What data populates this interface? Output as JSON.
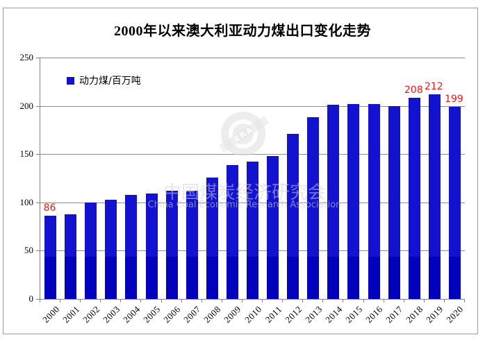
{
  "window": {
    "background": "#ffffff",
    "frame_border_color": "#9d9d9d"
  },
  "chart_data": {
    "type": "bar",
    "title": "2000年以来澳大利亚动力煤出口变化走势",
    "legend": {
      "label": "动力煤/百万吨",
      "position": "top-left-inside"
    },
    "categories": [
      "2000",
      "2001",
      "2002",
      "2003",
      "2004",
      "2005",
      "2006",
      "2007",
      "2008",
      "2009",
      "2010",
      "2011",
      "2012",
      "2013",
      "2014",
      "2015",
      "2016",
      "2017",
      "2018",
      "2019",
      "2020"
    ],
    "values": [
      86,
      88,
      100,
      103,
      108,
      109,
      112,
      112,
      126,
      139,
      142,
      148,
      171,
      188,
      201,
      202,
      202,
      200,
      208,
      212,
      199
    ],
    "xlabel": "",
    "ylabel": "",
    "ylim": [
      0,
      250
    ],
    "yticks": [
      0,
      50,
      100,
      150,
      200,
      250
    ],
    "grid": true,
    "data_labels": [
      {
        "index": 0,
        "text": "86"
      },
      {
        "index": 18,
        "text": "208"
      },
      {
        "index": 19,
        "text": "212"
      },
      {
        "index": 20,
        "text": "199"
      }
    ],
    "colors": {
      "bar_top": "#1212CF",
      "bar_bottom": "#0202BC",
      "data_label_red": "#FF1414",
      "gridline": "#8c8c8c",
      "axis": "#808080"
    }
  },
  "watermark": {
    "logo_text": "ERA",
    "line1": "中国煤炭经济研究会",
    "line2": "China Coal Economic Research Association"
  }
}
